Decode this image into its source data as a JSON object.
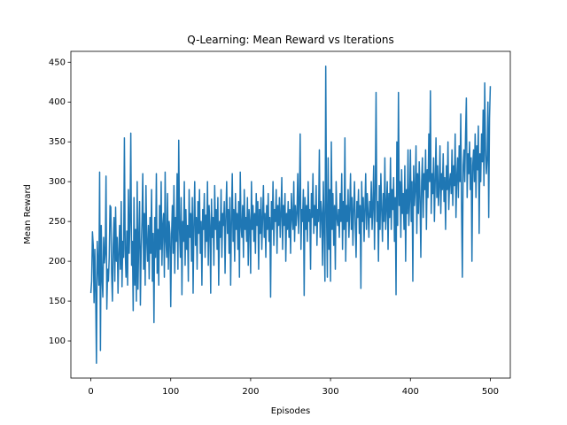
{
  "chart_data": {
    "type": "line",
    "title": "Q-Learning: Mean Reward vs Iterations",
    "x_label": "Episodes",
    "y_label": "Mean Reward",
    "xlim": [
      -25,
      525
    ],
    "ylim": [
      53.35,
      463.65
    ],
    "xticks": [
      0,
      100,
      200,
      300,
      400,
      500
    ],
    "yticks": [
      100,
      150,
      200,
      250,
      300,
      350,
      400,
      450
    ],
    "series": [
      {
        "color": "#1f77b4",
        "x": [
          0,
          1,
          2,
          3,
          4,
          5,
          6,
          7,
          8,
          9,
          10,
          11,
          12,
          13,
          14,
          15,
          16,
          17,
          18,
          19,
          20,
          21,
          22,
          23,
          24,
          25,
          26,
          27,
          28,
          29,
          30,
          31,
          32,
          33,
          34,
          35,
          36,
          37,
          38,
          39,
          40,
          41,
          42,
          43,
          44,
          45,
          46,
          47,
          48,
          49,
          50,
          51,
          52,
          53,
          54,
          55,
          56,
          57,
          58,
          59,
          60,
          61,
          62,
          63,
          64,
          65,
          66,
          67,
          68,
          69,
          70,
          71,
          72,
          73,
          74,
          75,
          76,
          77,
          78,
          79,
          80,
          81,
          82,
          83,
          84,
          85,
          86,
          87,
          88,
          89,
          90,
          91,
          92,
          93,
          94,
          95,
          96,
          97,
          98,
          99,
          100,
          101,
          102,
          103,
          104,
          105,
          106,
          107,
          108,
          109,
          110,
          111,
          112,
          113,
          114,
          115,
          116,
          117,
          118,
          119,
          120,
          121,
          122,
          123,
          124,
          125,
          126,
          127,
          128,
          129,
          130,
          131,
          132,
          133,
          134,
          135,
          136,
          137,
          138,
          139,
          140,
          141,
          142,
          143,
          144,
          145,
          146,
          147,
          148,
          149,
          150,
          151,
          152,
          153,
          154,
          155,
          156,
          157,
          158,
          159,
          160,
          161,
          162,
          163,
          164,
          165,
          166,
          167,
          168,
          169,
          170,
          171,
          172,
          173,
          174,
          175,
          176,
          177,
          178,
          179,
          180,
          181,
          182,
          183,
          184,
          185,
          186,
          187,
          188,
          189,
          190,
          191,
          192,
          193,
          194,
          195,
          196,
          197,
          198,
          199,
          200,
          201,
          202,
          203,
          204,
          205,
          206,
          207,
          208,
          209,
          210,
          211,
          212,
          213,
          214,
          215,
          216,
          217,
          218,
          219,
          220,
          221,
          222,
          223,
          224,
          225,
          226,
          227,
          228,
          229,
          230,
          231,
          232,
          233,
          234,
          235,
          236,
          237,
          238,
          239,
          240,
          241,
          242,
          243,
          244,
          245,
          246,
          247,
          248,
          249,
          250,
          251,
          252,
          253,
          254,
          255,
          256,
          257,
          258,
          259,
          260,
          261,
          262,
          263,
          264,
          265,
          266,
          267,
          268,
          269,
          270,
          271,
          272,
          273,
          274,
          275,
          276,
          277,
          278,
          279,
          280,
          281,
          282,
          283,
          284,
          285,
          286,
          287,
          288,
          289,
          290,
          291,
          292,
          293,
          294,
          295,
          296,
          297,
          298,
          299,
          300,
          301,
          302,
          303,
          304,
          305,
          306,
          307,
          308,
          309,
          310,
          311,
          312,
          313,
          314,
          315,
          316,
          317,
          318,
          319,
          320,
          321,
          322,
          323,
          324,
          325,
          326,
          327,
          328,
          329,
          330,
          331,
          332,
          333,
          334,
          335,
          336,
          337,
          338,
          339,
          340,
          341,
          342,
          343,
          344,
          345,
          346,
          347,
          348,
          349,
          350,
          351,
          352,
          353,
          354,
          355,
          356,
          357,
          358,
          359,
          360,
          361,
          362,
          363,
          364,
          365,
          366,
          367,
          368,
          369,
          370,
          371,
          372,
          373,
          374,
          375,
          376,
          377,
          378,
          379,
          380,
          381,
          382,
          383,
          384,
          385,
          386,
          387,
          388,
          389,
          390,
          391,
          392,
          393,
          394,
          395,
          396,
          397,
          398,
          399,
          400,
          401,
          402,
          403,
          404,
          405,
          406,
          407,
          408,
          409,
          410,
          411,
          412,
          413,
          414,
          415,
          416,
          417,
          418,
          419,
          420,
          421,
          422,
          423,
          424,
          425,
          426,
          427,
          428,
          429,
          430,
          431,
          432,
          433,
          434,
          435,
          436,
          437,
          438,
          439,
          440,
          441,
          442,
          443,
          444,
          445,
          446,
          447,
          448,
          449,
          450,
          451,
          452,
          453,
          454,
          455,
          456,
          457,
          458,
          459,
          460,
          461,
          462,
          463,
          464,
          465,
          466,
          467,
          468,
          469,
          470,
          471,
          472,
          473,
          474,
          475,
          476,
          477,
          478,
          479,
          480,
          481,
          482,
          483,
          484,
          485,
          486,
          487,
          488,
          489,
          490,
          491,
          492,
          493,
          494,
          495,
          496,
          497,
          498,
          499,
          500
        ],
        "values": [
          160,
          175,
          237,
          220,
          148,
          215,
          160,
          72,
          225,
          195,
          170,
          312,
          88,
          245,
          180,
          155,
          230,
          198,
          210,
          307,
          140,
          190,
          175,
          205,
          270,
          268,
          185,
          150,
          220,
          255,
          175,
          268,
          200,
          230,
          160,
          210,
          245,
          190,
          275,
          168,
          225,
          205,
          355,
          215,
          180,
          238,
          170,
          290,
          210,
          250,
          361,
          195,
          225,
          138,
          280,
          170,
          240,
          150,
          300,
          165,
          230,
          275,
          145,
          215,
          250,
          310,
          190,
          260,
          170,
          295,
          225,
          200,
          245,
          178,
          255,
          210,
          290,
          175,
          235,
          123,
          255,
          205,
          310,
          185,
          240,
          170,
          270,
          215,
          300,
          195,
          245,
          260,
          180,
          312,
          225,
          205,
          285,
          190,
          250,
          235,
          143,
          230,
          270,
          210,
          295,
          185,
          255,
          225,
          310,
          190,
          352,
          240,
          205,
          280,
          158,
          250,
          225,
          300,
          195,
          265,
          215,
          245,
          175,
          290,
          230,
          260,
          200,
          280,
          160,
          245,
          300,
          220,
          255,
          190,
          275,
          235,
          290,
          210,
          250,
          170,
          265,
          240,
          285,
          205,
          258,
          225,
          300,
          195,
          270,
          245,
          160,
          278,
          230,
          255,
          195,
          295,
          240,
          265,
          215,
          280,
          170,
          250,
          230,
          290,
          205,
          260,
          245,
          275,
          185,
          255,
          300,
          235,
          265,
          210,
          280,
          170,
          250,
          310,
          225,
          265,
          200,
          285,
          240,
          260,
          215,
          275,
          180,
          312,
          245,
          230,
          270,
          205,
          290,
          240,
          255,
          225,
          280,
          195,
          265,
          250,
          185,
          300,
          240,
          270,
          225,
          260,
          210,
          285,
          245,
          275,
          190,
          265,
          235,
          280,
          215,
          255,
          295,
          230,
          260,
          205,
          270,
          240,
          285,
          225,
          255,
          155,
          275,
          240,
          300,
          220,
          265,
          250,
          290,
          210,
          270,
          245,
          280,
          230,
          260,
          305,
          215,
          270,
          245,
          285,
          200,
          260,
          240,
          275,
          230,
          265,
          210,
          285,
          255,
          240,
          300,
          225,
          270,
          245,
          260,
          310,
          235,
          275,
          360,
          215,
          265,
          250,
          290,
          157,
          280,
          240,
          270,
          225,
          300,
          250,
          265,
          190,
          285,
          255,
          310,
          235,
          270,
          245,
          295,
          220,
          265,
          250,
          340,
          230,
          275,
          260,
          195,
          300,
          240,
          175,
          445,
          260,
          180,
          330,
          215,
          290,
          175,
          350,
          240,
          285,
          220,
          270,
          190,
          300,
          255,
          245,
          265,
          230,
          285,
          250,
          310,
          215,
          275,
          240,
          355,
          200,
          270,
          250,
          290,
          230,
          265,
          310,
          240,
          280,
          220,
          265,
          300,
          245,
          205,
          275,
          255,
          290,
          235,
          270,
          166,
          300,
          250,
          280,
          225,
          265,
          310,
          240,
          285,
          260,
          230,
          275,
          255,
          300,
          240,
          270,
          320,
          215,
          285,
          412,
          250,
          275,
          200,
          295,
          240,
          310,
          265,
          225,
          285,
          250,
          330,
          240,
          270,
          300,
          215,
          285,
          255,
          330,
          240,
          290,
          265,
          305,
          225,
          280,
          158,
          350,
          245,
          412,
          270,
          300,
          230,
          315,
          260,
          285,
          240,
          320,
          200,
          290,
          260,
          340,
          245,
          275,
          340,
          250,
          300,
          175,
          320,
          270,
          290,
          345,
          235,
          310,
          260,
          325,
          280,
          205,
          300,
          330,
          255,
          310,
          290,
          340,
          240,
          315,
          280,
          360,
          300,
          414,
          260,
          310,
          285,
          330,
          250,
          300,
          355,
          280,
          320,
          270,
          295,
          345,
          260,
          310,
          290,
          335,
          275,
          305,
          240,
          320,
          290,
          350,
          265,
          300,
          310,
          285,
          340,
          270,
          320,
          295,
          360,
          255,
          305,
          330,
          280,
          345,
          300,
          385,
          265,
          180,
          320,
          340,
          300,
          360,
          405,
          280,
          335,
          310,
          350,
          290,
          330,
          200,
          320,
          340,
          300,
          360,
          280,
          345,
          315,
          370,
          235,
          335,
          300,
          360,
          325,
          390,
          295,
          424,
          340,
          310,
          330,
          400,
          255,
          380,
          420
        ]
      }
    ]
  }
}
